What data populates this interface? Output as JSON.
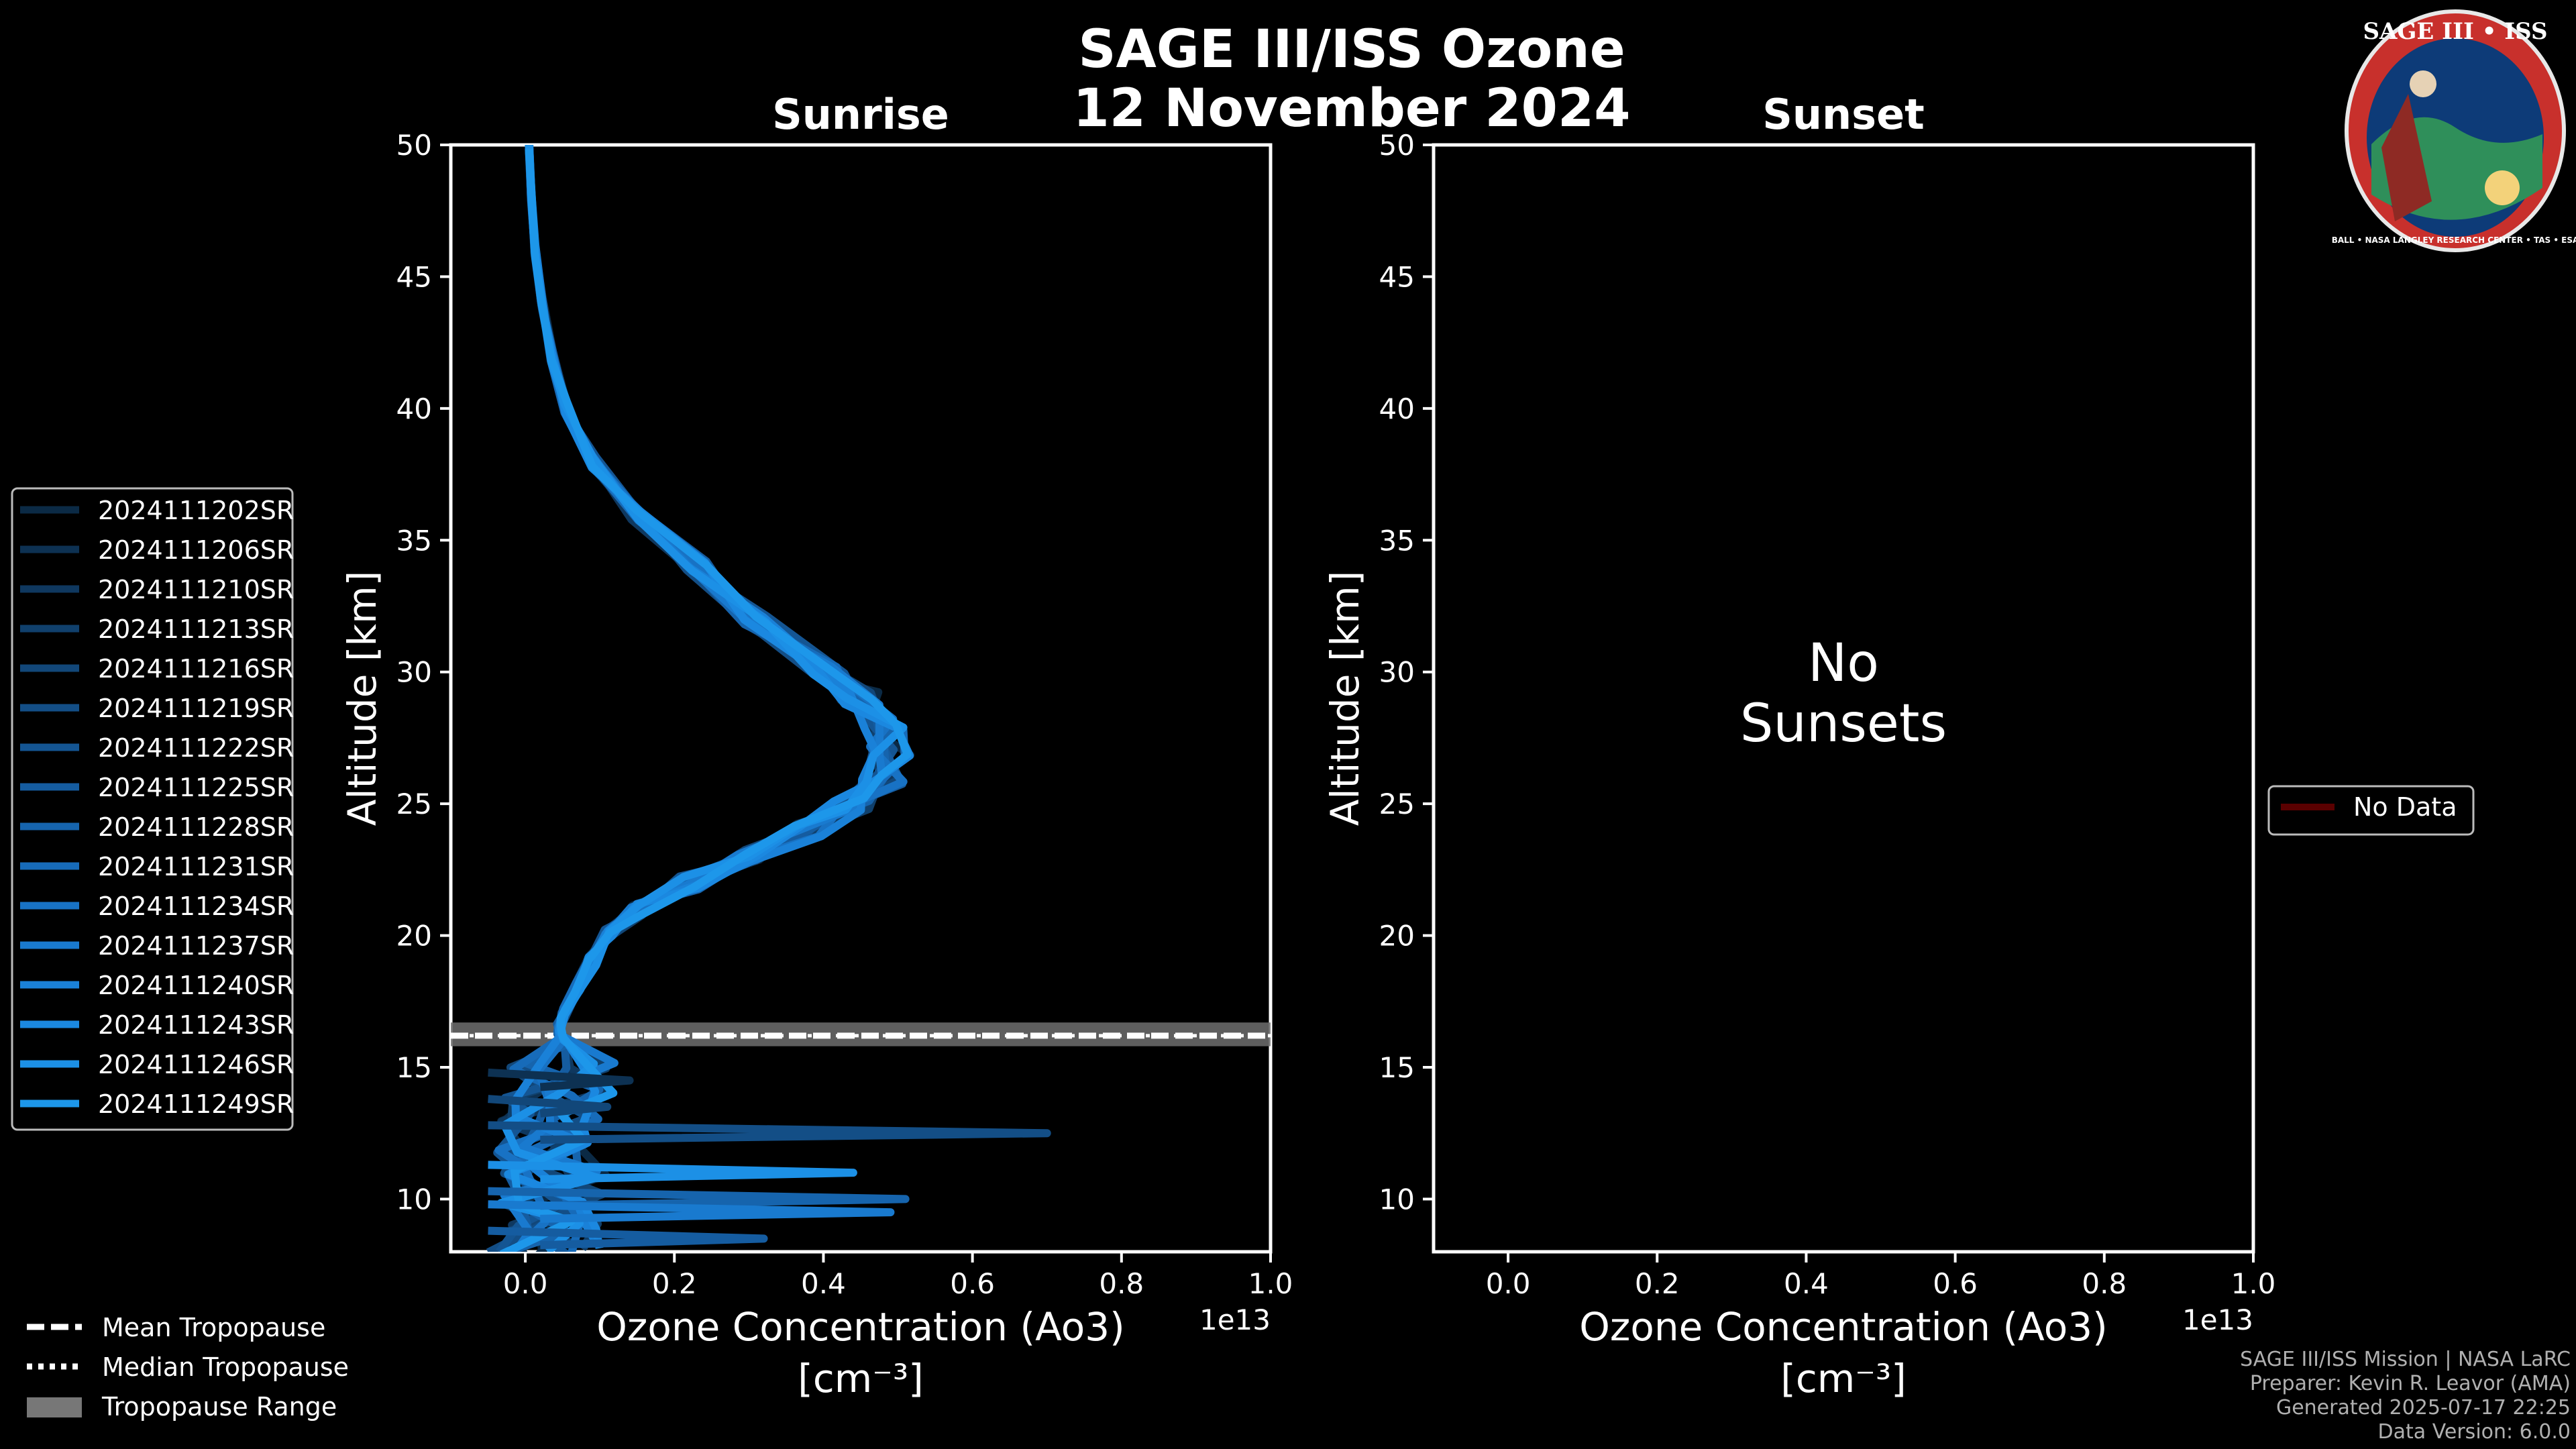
{
  "header": {
    "title_line1": "SAGE III/ISS Ozone",
    "title_line2": "12 November 2024"
  },
  "logo": {
    "text": "SAGE III • ISS",
    "ring_text": "BALL • NASA LANGLEY RESEARCH CENTER • TAS • ESA"
  },
  "chart_data": [
    {
      "type": "line",
      "title": "Sunrise",
      "xlabel": "Ozone Concentration (Ao3)",
      "xunit": "[cm⁻³]",
      "xscale_label": "1e13",
      "ylabel": "Altitude [km]",
      "xlim": [
        -0.1,
        1.0
      ],
      "ylim": [
        8,
        50
      ],
      "xticks": [
        "0.0",
        "0.2",
        "0.4",
        "0.6",
        "0.8",
        "1.0"
      ],
      "xtick_values": [
        0.0,
        0.2,
        0.4,
        0.6,
        0.8,
        1.0
      ],
      "yticks": [
        "10",
        "15",
        "20",
        "25",
        "30",
        "35",
        "40",
        "45",
        "50"
      ],
      "ytick_values": [
        10,
        15,
        20,
        25,
        30,
        35,
        40,
        45,
        50
      ],
      "tropopause": {
        "mean": 16.2,
        "median": 16.2,
        "range": [
          15.8,
          16.7
        ]
      },
      "base_profile": {
        "altitude": [
          50,
          48,
          46,
          44,
          42,
          40,
          38,
          36,
          34,
          32,
          30,
          29,
          28,
          27,
          26,
          25,
          24,
          23,
          22,
          21,
          20,
          19,
          18,
          17,
          16.5,
          16,
          15,
          14,
          13,
          12,
          11,
          10,
          9,
          8
        ],
        "value": [
          0.005,
          0.008,
          0.013,
          0.022,
          0.035,
          0.055,
          0.09,
          0.15,
          0.23,
          0.31,
          0.41,
          0.45,
          0.48,
          0.49,
          0.48,
          0.44,
          0.38,
          0.3,
          0.22,
          0.15,
          0.11,
          0.09,
          0.07,
          0.05,
          0.045,
          0.05,
          0.06,
          0.05,
          0.04,
          0.04,
          0.035,
          0.03,
          0.03,
          0.03
        ]
      },
      "series": [
        {
          "name": "2024111202SR",
          "color": "#0b2a45"
        },
        {
          "name": "2024111206SR",
          "color": "#0d3152"
        },
        {
          "name": "2024111210SR",
          "color": "#0f385f"
        },
        {
          "name": "2024111213SR",
          "color": "#10406c"
        },
        {
          "name": "2024111216SR",
          "color": "#124779"
        },
        {
          "name": "2024111219SR",
          "color": "#134e86"
        },
        {
          "name": "2024111222SR",
          "color": "#145593"
        },
        {
          "name": "2024111225SR",
          "color": "#155ca0"
        },
        {
          "name": "2024111228SR",
          "color": "#1664ad"
        },
        {
          "name": "2024111231SR",
          "color": "#176bb9"
        },
        {
          "name": "2024111234SR",
          "color": "#1872c4"
        },
        {
          "name": "2024111237SR",
          "color": "#197acf"
        },
        {
          "name": "2024111240SR",
          "color": "#1a81d8"
        },
        {
          "name": "2024111243SR",
          "color": "#1b88e0"
        },
        {
          "name": "2024111246SR",
          "color": "#1c90e6"
        },
        {
          "name": "2024111249SR",
          "color": "#1d97ea"
        }
      ],
      "spikes": [
        {
          "altitude": 12.5,
          "value": 0.7
        },
        {
          "altitude": 10.0,
          "value": 0.51
        },
        {
          "altitude": 9.5,
          "value": 0.49
        },
        {
          "altitude": 11.0,
          "value": 0.44
        },
        {
          "altitude": 14.5,
          "value": 0.14
        },
        {
          "altitude": 13.5,
          "value": 0.11
        },
        {
          "altitude": 8.5,
          "value": 0.32
        }
      ]
    },
    {
      "type": "line",
      "title": "Sunset",
      "xlabel": "Ozone Concentration (Ao3)",
      "xunit": "[cm⁻³]",
      "xscale_label": "1e13",
      "ylabel": "Altitude [km]",
      "xlim": [
        -0.1,
        1.0
      ],
      "ylim": [
        8,
        50
      ],
      "xticks": [
        "0.0",
        "0.2",
        "0.4",
        "0.6",
        "0.8",
        "1.0"
      ],
      "xtick_values": [
        0.0,
        0.2,
        0.4,
        0.6,
        0.8,
        1.0
      ],
      "yticks": [
        "10",
        "15",
        "20",
        "25",
        "30",
        "35",
        "40",
        "45",
        "50"
      ],
      "ytick_values": [
        10,
        15,
        20,
        25,
        30,
        35,
        40,
        45,
        50
      ],
      "annotation_line1": "No",
      "annotation_line2": "Sunsets",
      "legend": [
        {
          "name": "No Data",
          "color": "#5a0000"
        }
      ],
      "series": []
    }
  ],
  "tropopause_legend": {
    "mean": "Mean Tropopause",
    "median": "Median Tropopause",
    "range": "Tropopause Range"
  },
  "footer": {
    "line1": "SAGE III/ISS Mission | NASA LaRC",
    "line2": "Preparer: Kevin R. Leavor (AMA)",
    "line3": "Generated 2025-07-17 22:25",
    "line4": "Data Version: 6.0.0"
  }
}
